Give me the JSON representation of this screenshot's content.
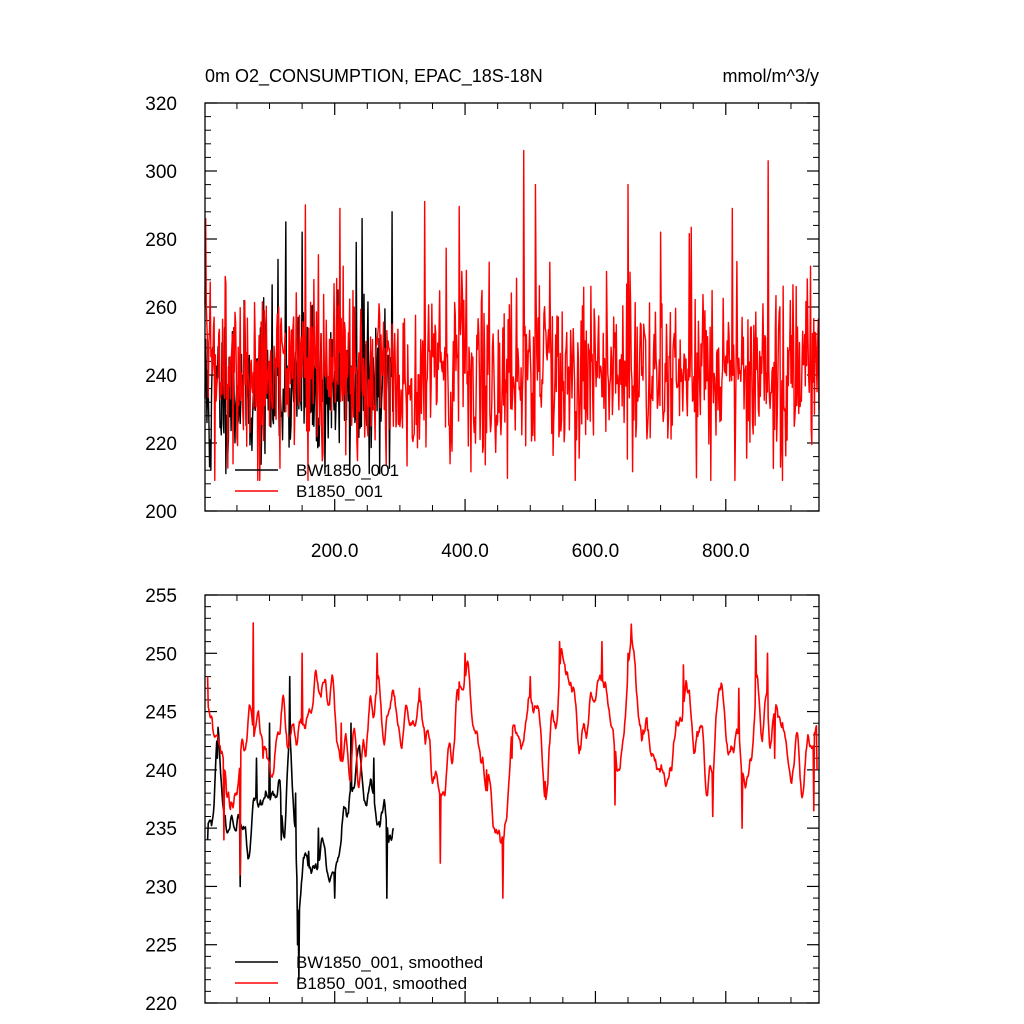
{
  "chart_data": [
    {
      "type": "line",
      "title": "0m O2_CONSUMPTION, EPAC_18S-18N",
      "units": "mmol/m^3/y",
      "xlim": [
        1,
        943
      ],
      "ylim": [
        200,
        320
      ],
      "x_ticks": [
        200,
        400,
        600,
        800
      ],
      "x_tick_labels": [
        "200.0",
        "400.0",
        "600.0",
        "800.0"
      ],
      "y_ticks": [
        200,
        220,
        240,
        260,
        280,
        300,
        320
      ],
      "y_tick_labels": [
        "200",
        "220",
        "240",
        "260",
        "280",
        "300",
        "320"
      ],
      "legend": {
        "placement": "bottom-left",
        "entries": [
          "BW1850_001",
          "B1850_001"
        ]
      },
      "series": [
        {
          "name": "BW1850_001",
          "color": "#000000",
          "x_start": 1,
          "x_end": 290,
          "length": 290,
          "mean": 236,
          "std": 11,
          "min": 211,
          "max": 288,
          "noise": "white",
          "anchors": [
            [
              4,
              226
            ],
            [
              8,
              213
            ],
            [
              10,
              212
            ],
            [
              95,
              258
            ],
            [
              113,
              274
            ],
            [
              125,
              285
            ],
            [
              150,
              282
            ],
            [
              205,
              265
            ],
            [
              233,
              279
            ],
            [
              242,
              286
            ],
            [
              288,
              288
            ]
          ]
        },
        {
          "name": "B1850_001",
          "color": "#ff0000",
          "x_start": 1,
          "x_end": 943,
          "length": 943,
          "mean": 241,
          "std": 13,
          "min": 209,
          "max": 306,
          "noise": "white",
          "anchors": [
            [
              2,
              286
            ],
            [
              85,
              209
            ],
            [
              155,
              290
            ],
            [
              208,
              289
            ],
            [
              338,
              291
            ],
            [
              490,
              306
            ],
            [
              508,
              296
            ],
            [
              650,
              296
            ],
            [
              700,
              282
            ],
            [
              810,
              289
            ],
            [
              865,
              303
            ],
            [
              930,
              272
            ]
          ]
        }
      ]
    },
    {
      "type": "line",
      "xlim": [
        1,
        943
      ],
      "ylim": [
        220,
        255
      ],
      "x_ticks": [
        200,
        400,
        600,
        800
      ],
      "y_ticks": [
        220,
        225,
        230,
        235,
        240,
        245,
        250,
        255
      ],
      "y_tick_labels": [
        "220",
        "225",
        "230",
        "235",
        "240",
        "245",
        "250",
        "255"
      ],
      "legend": {
        "placement": "bottom-left",
        "entries": [
          "BW1850_001, smoothed",
          "B1850_001, smoothed"
        ]
      },
      "series": [
        {
          "name": "BW1850_001, smoothed",
          "color": "#000000",
          "x_start": 5,
          "x_end": 290,
          "length": 286,
          "mean": 235,
          "std": 3.3,
          "min": 222,
          "max": 248,
          "noise": "smooth",
          "anchors": [
            [
              5,
              234
            ],
            [
              20,
              241
            ],
            [
              55,
              230
            ],
            [
              80,
              241
            ],
            [
              100,
              244
            ],
            [
              118,
              234
            ],
            [
              131,
              248
            ],
            [
              140,
              238
            ],
            [
              143,
              225
            ],
            [
              145,
              222
            ],
            [
              160,
              233
            ],
            [
              175,
              235
            ],
            [
              200,
              229
            ],
            [
              225,
              244
            ],
            [
              260,
              241
            ],
            [
              280,
              229
            ],
            [
              290,
              235
            ]
          ]
        },
        {
          "name": "B1850_001, smoothed",
          "color": "#ff0000",
          "x_start": 5,
          "x_end": 940,
          "length": 936,
          "mean": 242.5,
          "std": 3.8,
          "min": 229,
          "max": 252.6,
          "noise": "smooth",
          "anchors": [
            [
              5,
              248
            ],
            [
              30,
              234
            ],
            [
              55,
              231
            ],
            [
              75,
              252.6
            ],
            [
              90,
              241
            ],
            [
              150,
              250
            ],
            [
              210,
              244
            ],
            [
              265,
              250
            ],
            [
              330,
              247
            ],
            [
              362,
              232
            ],
            [
              390,
              246
            ],
            [
              400,
              250
            ],
            [
              433,
              240
            ],
            [
              458,
              229
            ],
            [
              472,
              241
            ],
            [
              523,
              239
            ],
            [
              500,
              248
            ],
            [
              545,
              251
            ],
            [
              576,
              242
            ],
            [
              610,
              251
            ],
            [
              630,
              237
            ],
            [
              650,
              250
            ],
            [
              655,
              252.5
            ],
            [
              700,
              240
            ],
            [
              735,
              249
            ],
            [
              780,
              236
            ],
            [
              820,
              247
            ],
            [
              825,
              235
            ],
            [
              846,
              251.5
            ],
            [
              864,
              250
            ],
            [
              875,
              241
            ],
            [
              940,
              240
            ],
            [
              935,
              236.5
            ]
          ]
        }
      ]
    }
  ]
}
